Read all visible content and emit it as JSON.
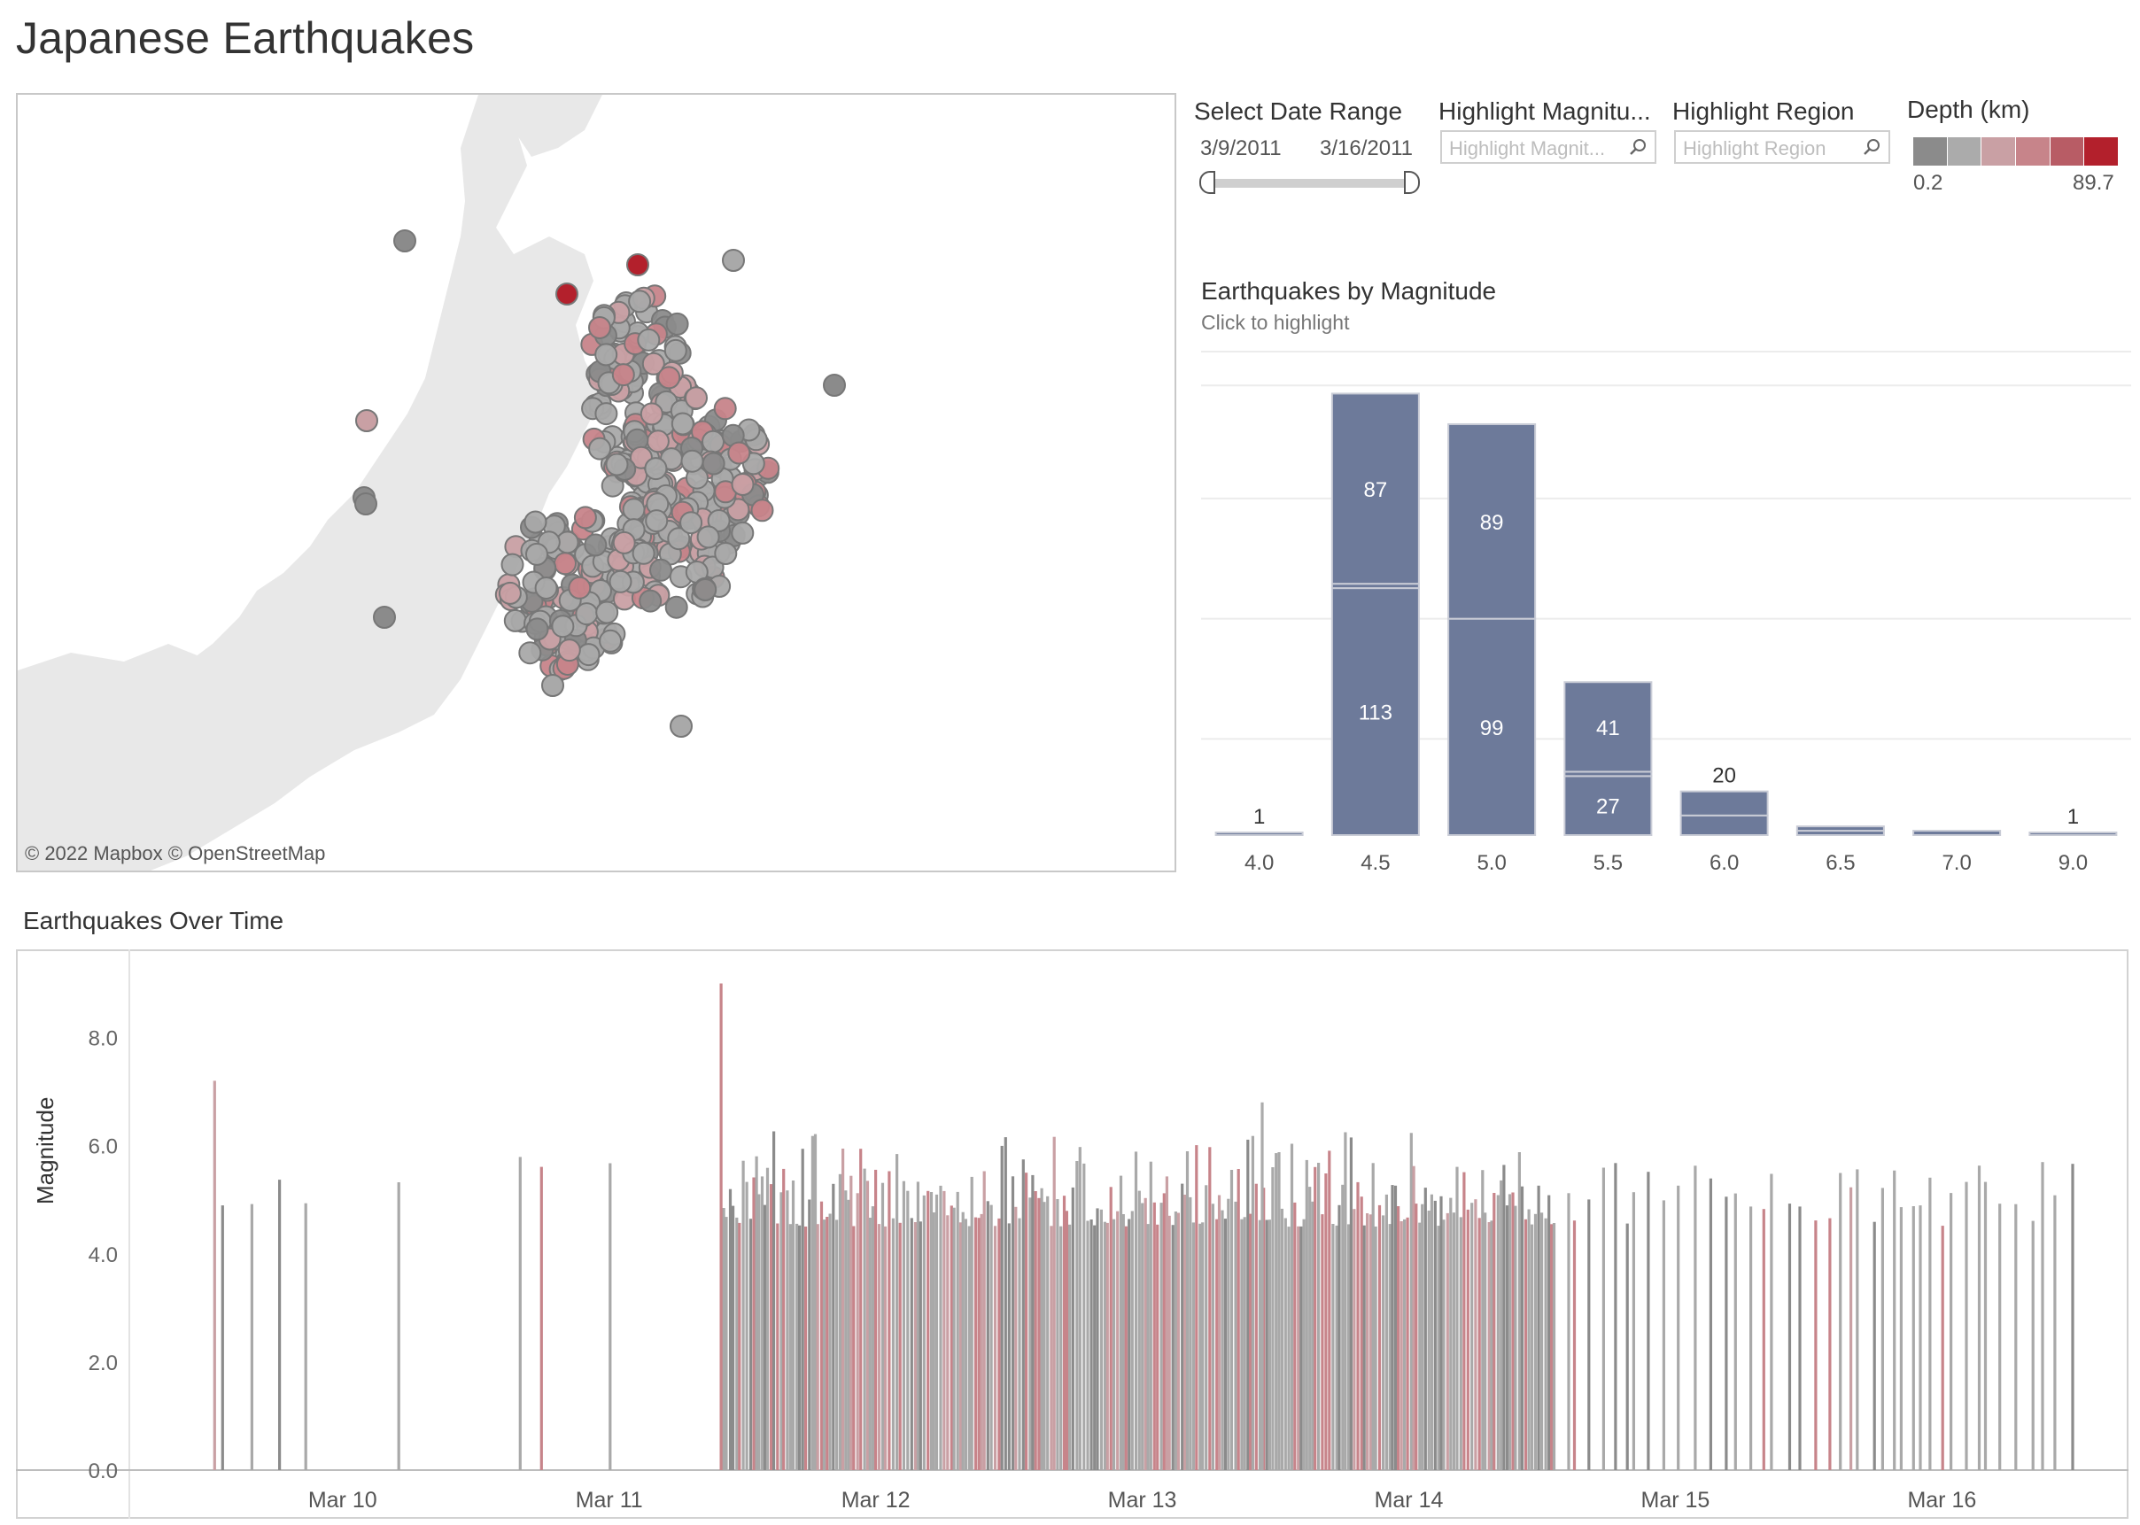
{
  "page_title": "Japanese Earthquakes",
  "map": {
    "attribution": "© 2022 Mapbox  © OpenStreetMap"
  },
  "controls": {
    "date_range": {
      "label": "Select Date Range",
      "start": "3/9/2011",
      "end": "3/16/2011"
    },
    "highlight_magnitude": {
      "label": "Highlight Magnitu...",
      "placeholder": "Highlight Magnit..."
    },
    "highlight_region": {
      "label": "Highlight Region",
      "placeholder": "Highlight Region"
    },
    "depth_legend": {
      "label": "Depth (km)",
      "min": "0.2",
      "max": "89.7",
      "colors": [
        "#8b8b8b",
        "#ababab",
        "#c9a0a4",
        "#c7848a",
        "#b85c65",
        "#b3202c"
      ]
    }
  },
  "bar_chart": {
    "title": "Earthquakes by Magnitude",
    "subtitle": "Click to highlight",
    "color": "#6d7a9a"
  },
  "timeline": {
    "title": "Earthquakes Over Time",
    "ylabel": "Magnitude",
    "y_ticks": [
      "8.0",
      "6.0",
      "4.0",
      "2.0",
      "0.0"
    ],
    "x_ticks": [
      "Mar 10",
      "Mar 11",
      "Mar 12",
      "Mar 13",
      "Mar 14",
      "Mar 15",
      "Mar 16"
    ]
  },
  "chart_data": [
    {
      "type": "bar",
      "title": "Earthquakes by Magnitude",
      "categories": [
        "4.0",
        "4.5",
        "5.0",
        "5.5",
        "6.0",
        "6.5",
        "7.0",
        "9.0"
      ],
      "stacks": [
        {
          "category": "4.0",
          "segments": [
            1
          ],
          "labels": [
            "1"
          ]
        },
        {
          "category": "4.5",
          "segments": [
            113,
            2,
            87
          ],
          "labels": [
            "113",
            "",
            "87"
          ]
        },
        {
          "category": "5.0",
          "segments": [
            99,
            89
          ],
          "labels": [
            "99",
            "89"
          ]
        },
        {
          "category": "5.5",
          "segments": [
            27,
            2,
            41
          ],
          "labels": [
            "27",
            "",
            "41"
          ]
        },
        {
          "category": "6.0",
          "segments": [
            9,
            11
          ],
          "labels": [
            "",
            "20"
          ]
        },
        {
          "category": "6.5",
          "segments": [
            2,
            2
          ],
          "labels": [
            "",
            ""
          ]
        },
        {
          "category": "7.0",
          "segments": [
            2
          ],
          "labels": [
            ""
          ]
        },
        {
          "category": "9.0",
          "segments": [
            1
          ],
          "labels": [
            "1"
          ]
        }
      ],
      "ylim": [
        0,
        220
      ]
    },
    {
      "type": "bar",
      "title": "Earthquakes Over Time",
      "xlabel": "",
      "ylabel": "Magnitude",
      "ylim": [
        0,
        9.5
      ],
      "x_range_days": [
        9.4,
        16.9
      ],
      "notable_events": [
        {
          "day": 9.72,
          "magnitude": 7.2,
          "color": "#c9a0a4"
        },
        {
          "day": 11.62,
          "magnitude": 9.0,
          "color": "#c7848a"
        },
        {
          "day": 13.65,
          "magnitude": 6.8,
          "color": "#ababab"
        }
      ]
    }
  ]
}
